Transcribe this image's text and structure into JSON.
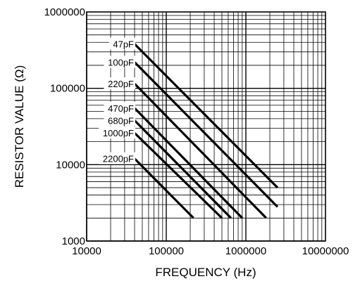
{
  "chart_data": {
    "type": "line",
    "title": "",
    "xlabel": "FREQUENCY (Hz)",
    "ylabel": "RESISTOR VALUE (Ω)",
    "x_scale": "log",
    "y_scale": "log",
    "xlim": [
      10000,
      10000000
    ],
    "ylim": [
      1000,
      1000000
    ],
    "grid": true,
    "x_ticks": [
      {
        "value": 10000,
        "label": "10000"
      },
      {
        "value": 100000,
        "label": "100000"
      },
      {
        "value": 1000000,
        "label": "1000000"
      },
      {
        "value": 10000000,
        "label": "10000000"
      }
    ],
    "y_ticks": [
      {
        "value": 1000,
        "label": "1000"
      },
      {
        "value": 10000,
        "label": "10000"
      },
      {
        "value": 100000,
        "label": "100000"
      },
      {
        "value": 1000000,
        "label": "1000000"
      }
    ],
    "series": [
      {
        "name": "47pF",
        "x": [
          40000,
          2500000
        ],
        "y": [
          380000,
          5000
        ]
      },
      {
        "name": "100pF",
        "x": [
          40000,
          2500000
        ],
        "y": [
          220000,
          2800
        ]
      },
      {
        "name": "220pF",
        "x": [
          40000,
          1800000
        ],
        "y": [
          115000,
          2000
        ]
      },
      {
        "name": "470pF",
        "x": [
          40000,
          900000
        ],
        "y": [
          55000,
          2000
        ]
      },
      {
        "name": "680pF",
        "x": [
          40000,
          650000
        ],
        "y": [
          38000,
          2000
        ]
      },
      {
        "name": "1000pF",
        "x": [
          40000,
          500000
        ],
        "y": [
          26000,
          2000
        ]
      },
      {
        "name": "2200pF",
        "x": [
          40000,
          220000
        ],
        "y": [
          12000,
          2000
        ]
      }
    ]
  }
}
